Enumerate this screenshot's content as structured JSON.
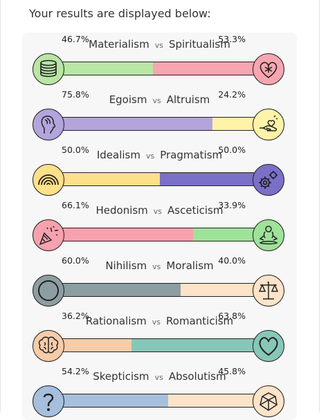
{
  "intro_text": "Your results are displayed below:",
  "vs_label": "vs",
  "axes": [
    {
      "left_label": "Materialism",
      "right_label": "Spiritualism",
      "left_pct": "46.7%",
      "right_pct": "53.3%",
      "left_value": 46.7,
      "left_color": "#b9e6a4",
      "right_color": "#f7a6b1",
      "left_icon": "coins-icon",
      "right_icon": "heart-flower-icon"
    },
    {
      "left_label": "Egoism",
      "right_label": "Altruism",
      "left_pct": "75.8%",
      "right_pct": "24.2%",
      "left_value": 75.8,
      "left_color": "#b3a5dc",
      "right_color": "#fff3a8",
      "left_icon": "head-profile-icon",
      "right_icon": "giving-hand-heart-icon"
    },
    {
      "left_label": "Idealism",
      "right_label": "Pragmatism",
      "left_pct": "50.0%",
      "right_pct": "50.0%",
      "left_value": 50.0,
      "left_color": "#fde08a",
      "right_color": "#7a70c8",
      "left_icon": "rainbow-icon",
      "right_icon": "gears-icon"
    },
    {
      "left_label": "Hedonism",
      "right_label": "Asceticism",
      "left_pct": "66.1%",
      "right_pct": "33.9%",
      "left_value": 66.1,
      "left_color": "#f7a1ae",
      "right_color": "#9fe29a",
      "left_icon": "party-popper-icon",
      "right_icon": "meditation-icon"
    },
    {
      "left_label": "Nihilism",
      "right_label": "Moralism",
      "left_pct": "60.0%",
      "right_pct": "40.0%",
      "left_value": 60.0,
      "left_color": "#8c9ea1",
      "right_color": "#fde3c8",
      "left_icon": "empty-circle-icon",
      "right_icon": "scales-icon"
    },
    {
      "left_label": "Rationalism",
      "right_label": "Romanticism",
      "left_pct": "36.2%",
      "right_pct": "63.8%",
      "left_value": 36.2,
      "left_color": "#f8cca8",
      "right_color": "#86c7b8",
      "left_icon": "brain-icon",
      "right_icon": "heart-icon"
    },
    {
      "left_label": "Skepticism",
      "right_label": "Absolutism",
      "left_pct": "54.2%",
      "right_pct": "45.8%",
      "left_value": 54.2,
      "left_color": "#a5bfdc",
      "right_color": "#fde3c8",
      "left_icon": "question-mark-icon",
      "right_icon": "gem-icon"
    }
  ]
}
